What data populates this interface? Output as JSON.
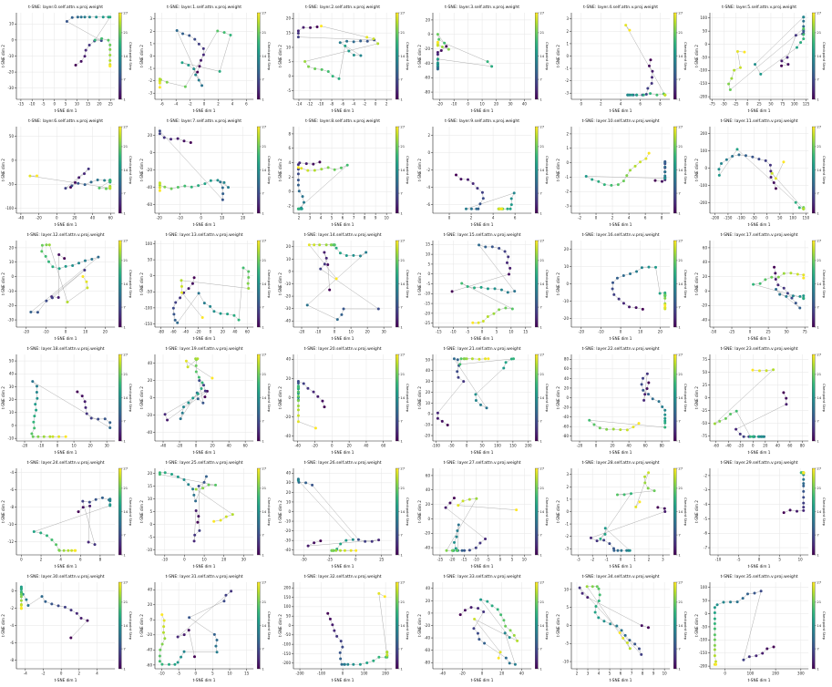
{
  "figure": {
    "xlabel": "t-SNE dim 1",
    "ylabel": "t-SNE dim 2",
    "colorbar_label": "Checkpoint Step",
    "colorbar_ticks": [
      "1",
      "7",
      "14",
      "21",
      "27"
    ],
    "colormap": "viridis",
    "colors": {
      "line": "#9a9a9a",
      "grid": "#e6e6e6",
      "axis": "#222222"
    }
  },
  "chart_data": [
    {
      "type": "scatter",
      "title": "t-SNE: layer.0.self.attn.v.proj.weight",
      "xticks": [
        "-15",
        "-10",
        "-5",
        "0",
        "5",
        "10",
        "15",
        "20",
        "25"
      ],
      "yticks": [
        "10",
        "0",
        "-10",
        "-20",
        "-30"
      ],
      "xlim": [
        -17,
        27
      ],
      "ylim": [
        -37,
        17
      ],
      "steps": 27,
      "seed": 1
    },
    {
      "type": "scatter",
      "title": "t-SNE: layer.1.self.attn.v.proj.weight",
      "xticks": [
        "-6",
        "-4",
        "-2",
        "0",
        "2",
        "4",
        "6"
      ],
      "yticks": [
        "3",
        "2",
        "1",
        "0",
        "-1",
        "-2",
        "-3"
      ],
      "xlim": [
        -7,
        7
      ],
      "ylim": [
        -3.5,
        3.5
      ],
      "steps": 27,
      "seed": 2
    },
    {
      "type": "scatter",
      "title": "t-SNE: layer.2.self.attn.v.proj.weight",
      "xticks": [
        "-14",
        "-12",
        "-10",
        "-8",
        "-6",
        "-4",
        "-2",
        "0",
        "2"
      ],
      "yticks": [
        "20",
        "15",
        "10",
        "5",
        "0",
        "-5"
      ],
      "xlim": [
        -15,
        3
      ],
      "ylim": [
        -8,
        22
      ],
      "steps": 27,
      "seed": 3
    },
    {
      "type": "scatter",
      "title": "t-SNE: layer.3.self.attn.v.proj.weight",
      "xticks": [
        "-20",
        "-10",
        "0",
        "10",
        "20",
        "30",
        "40"
      ],
      "yticks": [
        "20",
        "0",
        "-20",
        "-40",
        "-60",
        "-80"
      ],
      "xlim": [
        -25,
        45
      ],
      "ylim": [
        -90,
        30
      ],
      "steps": 27,
      "seed": 4
    },
    {
      "type": "scatter",
      "title": "t-SNE: layer.4.self.attn.v.proj.weight",
      "xticks": [
        "0",
        "2",
        "4",
        "6",
        "8"
      ],
      "yticks": [
        "3",
        "2",
        "1",
        "0",
        "-1",
        "-2",
        "-3"
      ],
      "xlim": [
        -1,
        9
      ],
      "ylim": [
        -3.5,
        3.5
      ],
      "steps": 27,
      "seed": 5
    },
    {
      "type": "scatter",
      "title": "t-SNE: layer.5.self.attn.v.proj.weight",
      "xticks": [
        "-75",
        "-50",
        "-25",
        "0",
        "25",
        "50",
        "75",
        "100",
        "125"
      ],
      "yticks": [
        "100",
        "50",
        "0",
        "-50",
        "-100",
        "-150",
        "-200"
      ],
      "xlim": [
        -80,
        130
      ],
      "ylim": [
        -210,
        120
      ],
      "steps": 27,
      "seed": 6
    },
    {
      "type": "scatter",
      "title": "t-SNE: layer.6.self.attn.v.proj.weight",
      "xticks": [
        "-40",
        "-20",
        "0",
        "20",
        "40",
        "60"
      ],
      "yticks": [
        "50",
        "0",
        "-50",
        "-100"
      ],
      "xlim": [
        -45,
        65
      ],
      "ylim": [
        -110,
        70
      ],
      "steps": 27,
      "seed": 7
    },
    {
      "type": "scatter",
      "title": "t-SNE: layer.7.self.attn.v.proj.weight",
      "xticks": [
        "-20",
        "-10",
        "0",
        "10",
        "20"
      ],
      "yticks": [
        "20",
        "0",
        "-20",
        "-40",
        "-60"
      ],
      "xlim": [
        -22,
        25
      ],
      "ylim": [
        -70,
        30
      ],
      "steps": 27,
      "seed": 8
    },
    {
      "type": "scatter",
      "title": "t-SNE: layer.8.self.attn.v.proj.weight",
      "xticks": [
        "2",
        "3",
        "4",
        "5",
        "6",
        "7",
        "8",
        "9",
        "10"
      ],
      "yticks": [
        "8",
        "6",
        "4",
        "2",
        "0",
        "-2"
      ],
      "xlim": [
        1.5,
        10.5
      ],
      "ylim": [
        -3,
        9
      ],
      "steps": 27,
      "seed": 9
    },
    {
      "type": "scatter",
      "title": "t-SNE: layer.9.self.attn.v.proj.weight",
      "xticks": [
        "0",
        "2",
        "4",
        "6"
      ],
      "yticks": [
        "2",
        "0",
        "-2",
        "-4",
        "-6"
      ],
      "xlim": [
        -1.5,
        7.5
      ],
      "ylim": [
        -7,
        3
      ],
      "steps": 27,
      "seed": 10
    },
    {
      "type": "scatter",
      "title": "t-SNE: layer.10.self.attn.v.proj.weight",
      "xticks": [
        "-2",
        "0",
        "2",
        "4",
        "6",
        "8"
      ],
      "yticks": [
        "2",
        "1",
        "0",
        "-1",
        "-2",
        "-3"
      ],
      "xlim": [
        -3,
        9
      ],
      "ylim": [
        -3.5,
        2.5
      ],
      "steps": 27,
      "seed": 11
    },
    {
      "type": "scatter",
      "title": "t-SNE: layer.11.self.attn.v.proj.weight",
      "xticks": [
        "-200",
        "-150",
        "-100",
        "-50",
        "0",
        "50",
        "100",
        "150"
      ],
      "yticks": [
        "200",
        "100",
        "0",
        "-100",
        "-200"
      ],
      "xlim": [
        -220,
        160
      ],
      "ylim": [
        -260,
        240
      ],
      "steps": 27,
      "seed": 12
    },
    {
      "type": "scatter",
      "title": "t-SNE: layer.12.self.attn.v.proj.weight",
      "xticks": [
        "-20",
        "-10",
        "0",
        "10",
        "20"
      ],
      "yticks": [
        "20",
        "10",
        "0",
        "-10",
        "-20",
        "-30"
      ],
      "xlim": [
        -25,
        25
      ],
      "ylim": [
        -35,
        25
      ],
      "steps": 27,
      "seed": 13
    },
    {
      "type": "scatter",
      "title": "t-SNE: layer.13.self.attn.v.proj.weight",
      "xticks": [
        "-80",
        "-60",
        "-40",
        "-20",
        "0",
        "20",
        "40",
        "60"
      ],
      "yticks": [
        "100",
        "50",
        "0",
        "-50",
        "-100",
        "-150"
      ],
      "xlim": [
        -90,
        70
      ],
      "ylim": [
        -160,
        110
      ],
      "steps": 27,
      "seed": 14
    },
    {
      "type": "scatter",
      "title": "t-SNE: layer.14.self.attn.v.proj.weight",
      "xticks": [
        "-20",
        "-10",
        "0",
        "10",
        "20",
        "30"
      ],
      "yticks": [
        "20",
        "10",
        "0",
        "-10",
        "-20",
        "-30",
        "-40"
      ],
      "xlim": [
        -25,
        35
      ],
      "ylim": [
        -45,
        25
      ],
      "steps": 27,
      "seed": 15
    },
    {
      "type": "scatter",
      "title": "t-SNE: layer.15.self.attn.v.proj.weight",
      "xticks": [
        "-15",
        "-10",
        "-5",
        "0",
        "5",
        "10",
        "15"
      ],
      "yticks": [
        "15",
        "10",
        "5",
        "0",
        "-5",
        "-10",
        "-15",
        "-20",
        "-25"
      ],
      "xlim": [
        -17,
        17
      ],
      "ylim": [
        -27,
        17
      ],
      "steps": 27,
      "seed": 16
    },
    {
      "type": "scatter",
      "title": "t-SNE: layer.16.self.attn.v.proj.weight",
      "xticks": [
        "-20",
        "-10",
        "0",
        "10",
        "20"
      ],
      "yticks": [
        "20",
        "10",
        "0",
        "-10",
        "-20"
      ],
      "xlim": [
        -25,
        25
      ],
      "ylim": [
        -25,
        25
      ],
      "steps": 27,
      "seed": 17
    },
    {
      "type": "scatter",
      "title": "t-SNE: layer.17.self.attn.v.proj.weight",
      "xticks": [
        "-50",
        "-25",
        "0",
        "25",
        "50",
        "75"
      ],
      "yticks": [
        "60",
        "40",
        "20",
        "0",
        "-20",
        "-40"
      ],
      "xlim": [
        -55,
        80
      ],
      "ylim": [
        -50,
        70
      ],
      "steps": 27,
      "seed": 18
    },
    {
      "type": "scatter",
      "title": "t-SNE: layer.18.self.attn.v.proj.weight",
      "xticks": [
        "-20",
        "-10",
        "0",
        "10",
        "20",
        "30"
      ],
      "yticks": [
        "50",
        "40",
        "30",
        "20",
        "10",
        "0",
        "-10"
      ],
      "xlim": [
        -25,
        35
      ],
      "ylim": [
        -12,
        55
      ],
      "steps": 27,
      "seed": 19
    },
    {
      "type": "scatter",
      "title": "t-SNE: layer.19.self.attn.v.proj.weight",
      "xticks": [
        "-40",
        "-20",
        "0",
        "20",
        "40",
        "60"
      ],
      "yticks": [
        "40",
        "20",
        "0",
        "-20",
        "-40"
      ],
      "xlim": [
        -50,
        70
      ],
      "ylim": [
        -50,
        50
      ],
      "steps": 27,
      "seed": 20
    },
    {
      "type": "scatter",
      "title": "t-SNE: layer.20.self.attn.v.proj.weight",
      "xticks": [
        "-40",
        "-20",
        "0",
        "20",
        "40",
        "60"
      ],
      "yticks": [
        "40",
        "20",
        "0",
        "-20",
        "-40"
      ],
      "xlim": [
        -45,
        70
      ],
      "ylim": [
        -45,
        45
      ],
      "steps": 27,
      "seed": 21
    },
    {
      "type": "scatter",
      "title": "t-SNE: layer.21.self.attn.v.proj.weight",
      "xticks": [
        "-100",
        "-50",
        "0",
        "50",
        "100",
        "150",
        "200"
      ],
      "yticks": [
        "50",
        "40",
        "30",
        "20",
        "10",
        "0",
        "-10",
        "-20"
      ],
      "xlim": [
        -110,
        210
      ],
      "ylim": [
        -25,
        55
      ],
      "steps": 27,
      "seed": 22
    },
    {
      "type": "scatter",
      "title": "t-SNE: layer.22.self.attn.v.proj.weight",
      "xticks": [
        "-20",
        "0",
        "20",
        "40",
        "60",
        "80"
      ],
      "yticks": [
        "80",
        "60",
        "40",
        "20",
        "0",
        "-20",
        "-40",
        "-60",
        "-80"
      ],
      "xlim": [
        -30,
        90
      ],
      "ylim": [
        -90,
        90
      ],
      "steps": 27,
      "seed": 23
    },
    {
      "type": "scatter",
      "title": "t-SNE: layer.23.self.attn.v.proj.weight",
      "xticks": [
        "-60",
        "-40",
        "-20",
        "0",
        "20",
        "40",
        "60",
        "80"
      ],
      "yticks": [
        "75",
        "50",
        "25",
        "0",
        "-25",
        "-50",
        "-75"
      ],
      "xlim": [
        -70,
        90
      ],
      "ylim": [
        -85,
        85
      ],
      "steps": 27,
      "seed": 24
    },
    {
      "type": "scatter",
      "title": "t-SNE: layer.24.self.attn.v.proj.weight",
      "xticks": [
        "0",
        "2",
        "4",
        "6",
        "8"
      ],
      "yticks": [
        "-4",
        "-6",
        "-8",
        "-10",
        "-12"
      ],
      "xlim": [
        -0.5,
        9.5
      ],
      "ylim": [
        -13.5,
        -3.5
      ],
      "steps": 27,
      "seed": 25
    },
    {
      "type": "scatter",
      "title": "t-SNE: layer.25.self.attn.v.proj.weight",
      "xticks": [
        "-10",
        "0",
        "10",
        "20",
        "30"
      ],
      "yticks": [
        "20",
        "15",
        "10",
        "5",
        "0",
        "-5",
        "-10"
      ],
      "xlim": [
        -15,
        35
      ],
      "ylim": [
        -12,
        22
      ],
      "steps": 27,
      "seed": 26
    },
    {
      "type": "scatter",
      "title": "t-SNE: layer.26.self.attn.v.proj.weight",
      "xticks": [
        "-50",
        "-25",
        "0",
        "25"
      ],
      "yticks": [
        "40",
        "30",
        "20",
        "10",
        "0",
        "-10",
        "-20",
        "-30",
        "-40"
      ],
      "xlim": [
        -60,
        35
      ],
      "ylim": [
        -45,
        45
      ],
      "steps": 27,
      "seed": 27
    },
    {
      "type": "scatter",
      "title": "t-SNE: layer.27.self.attn.v.proj.weight",
      "xticks": [
        "-25",
        "-20",
        "-15",
        "-10",
        "-5",
        "0",
        "5",
        "10"
      ],
      "yticks": [
        "60",
        "40",
        "20",
        "0",
        "-20",
        "-40"
      ],
      "xlim": [
        -28,
        13
      ],
      "ylim": [
        -50,
        70
      ],
      "steps": 27,
      "seed": 28
    },
    {
      "type": "scatter",
      "title": "t-SNE: layer.28.self.attn.v.proj.weight",
      "xticks": [
        "-3",
        "-2",
        "-1",
        "0",
        "1",
        "2",
        "3"
      ],
      "yticks": [
        "3",
        "2",
        "1",
        "0",
        "-1",
        "-2",
        "-3"
      ],
      "xlim": [
        -3.5,
        3.5
      ],
      "ylim": [
        -3.5,
        3.5
      ],
      "steps": 27,
      "seed": 29
    },
    {
      "type": "scatter",
      "title": "t-SNE: layer.29.self.attn.v.proj.weight",
      "xticks": [
        "-10",
        "-5",
        "0",
        "5",
        "10"
      ],
      "yticks": [
        "-2",
        "-3",
        "-4",
        "-5",
        "-6",
        "-7"
      ],
      "xlim": [
        -12,
        12
      ],
      "ylim": [
        -7.5,
        -1.5
      ],
      "steps": 27,
      "seed": 30
    },
    {
      "type": "scatter",
      "title": "t-SNE: layer.30.self.attn.v.proj.weight",
      "xticks": [
        "-4",
        "-2",
        "0",
        "2",
        "4"
      ],
      "yticks": [
        "0",
        "-2",
        "-4",
        "-6",
        "-8"
      ],
      "xlim": [
        -5,
        6
      ],
      "ylim": [
        -9,
        1
      ],
      "steps": 27,
      "seed": 31
    },
    {
      "type": "scatter",
      "title": "t-SNE: layer.31.self.attn.v.proj.weight",
      "xticks": [
        "-10",
        "-5",
        "0",
        "5",
        "10",
        "15"
      ],
      "yticks": [
        "40",
        "20",
        "0",
        "-20",
        "-40",
        "-60"
      ],
      "xlim": [
        -12,
        17
      ],
      "ylim": [
        -65,
        50
      ],
      "steps": 27,
      "seed": 32
    },
    {
      "type": "scatter",
      "title": "t-SNE: layer.32.self.attn.v.proj.weight",
      "xticks": [
        "-200",
        "-100",
        "0",
        "100",
        "200"
      ],
      "yticks": [
        "200",
        "150",
        "100",
        "50",
        "0",
        "-50",
        "-100",
        "-150",
        "-200"
      ],
      "xlim": [
        -230,
        230
      ],
      "ylim": [
        -230,
        230
      ],
      "steps": 27,
      "seed": 33
    },
    {
      "type": "scatter",
      "title": "t-SNE: layer.33.self.attn.v.proj.weight",
      "xticks": [
        "-40",
        "-20",
        "0",
        "20",
        "40"
      ],
      "yticks": [
        "40",
        "20",
        "0",
        "-20",
        "-40",
        "-60",
        "-80"
      ],
      "xlim": [
        -50,
        50
      ],
      "ylim": [
        -90,
        50
      ],
      "steps": 27,
      "seed": 34
    },
    {
      "type": "scatter",
      "title": "t-SNE: layer.34.self.attn.v.proj.weight",
      "xticks": [
        "2",
        "3",
        "4",
        "5",
        "6",
        "7",
        "8",
        "9",
        "10"
      ],
      "yticks": [
        "10",
        "5",
        "0",
        "-5",
        "-10"
      ],
      "xlim": [
        1.5,
        10.5
      ],
      "ylim": [
        -12,
        12
      ],
      "steps": 27,
      "seed": 35
    },
    {
      "type": "scatter",
      "title": "t-SNE: layer.35.self.attn.v.proj.weight",
      "xticks": [
        "0",
        "100",
        "200",
        "300"
      ],
      "yticks": [
        "100",
        "50",
        "0",
        "-50",
        "-100",
        "-150",
        "-200"
      ],
      "xlim": [
        -60,
        330
      ],
      "ylim": [
        -210,
        120
      ],
      "steps": 27,
      "seed": 36
    }
  ]
}
